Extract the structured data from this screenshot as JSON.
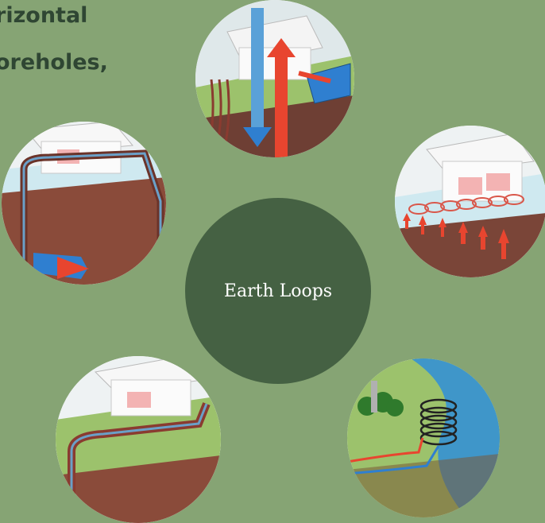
{
  "heading": {
    "line1": "rizontal",
    "line2": "oreholes,"
  },
  "center": {
    "label": "Earth Loops"
  },
  "colors": {
    "background": "#86a474",
    "hub": "#456143",
    "heading_text": "#2f4633",
    "hot_arrow": "#e8452f",
    "cold_arrow": "#2f7fd0",
    "grass": "#9cc26c",
    "soil": "#8a4b3a",
    "water": "#3f96c9"
  },
  "illustrations": [
    {
      "id": "vertical-heat-flow",
      "icon": "house-vertical-arrows-icon"
    },
    {
      "id": "horizontal-slinky",
      "icon": "house-slinky-coil-icon"
    },
    {
      "id": "pond-loop",
      "icon": "pond-coil-icon"
    },
    {
      "id": "horizontal-trench",
      "icon": "house-horizontal-trench-icon"
    },
    {
      "id": "vertical-borehole",
      "icon": "house-borehole-icon"
    }
  ]
}
